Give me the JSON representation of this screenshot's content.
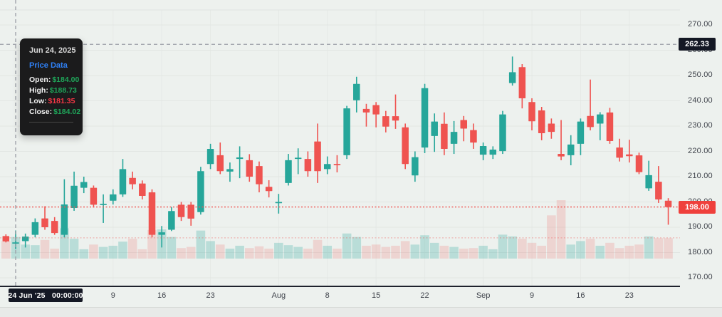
{
  "tooltip": {
    "date": "Jun 24, 2025",
    "series_label": "Price Data",
    "rows": [
      {
        "label": "Open:",
        "value": "$184.00",
        "trend": "up"
      },
      {
        "label": "High:",
        "value": "$188.73",
        "trend": "up"
      },
      {
        "label": "Low:",
        "value": "$181.35",
        "trend": "down"
      },
      {
        "label": "Close:",
        "value": "$184.02",
        "trend": "up"
      }
    ]
  },
  "axes": {
    "crosshair_price_label": "262.33",
    "last_price_label": "198.00",
    "crosshair_time_label": "24 Jun '25   00:00:00"
  },
  "colors": {
    "background": "#edf1ee",
    "up": "#26a69a",
    "down": "#ef5350",
    "volume_up": "rgba(38,166,154,0.26)",
    "volume_down": "rgba(239,83,80,0.18)",
    "grid": "#e2e6e3",
    "crosshair": "#9b9ea6",
    "last_price_line": "#ef5350",
    "axis_line": "#1e222d",
    "tooltip_blue": "#2f81f7",
    "value_green": "#1fa65a",
    "value_red": "#f23645"
  },
  "chart_data": {
    "type": "candlestick+volume",
    "y_ticks": [
      270,
      260,
      250,
      240,
      230,
      220,
      210,
      200,
      190,
      180,
      170
    ],
    "y_range": [
      166.5,
      276
    ],
    "x_ticks": [
      {
        "index": 11,
        "label": "9"
      },
      {
        "index": 16,
        "label": "16"
      },
      {
        "index": 21,
        "label": "23"
      },
      {
        "index": 28,
        "label": "Aug"
      },
      {
        "index": 33,
        "label": "8"
      },
      {
        "index": 38,
        "label": "15"
      },
      {
        "index": 43,
        "label": "22"
      },
      {
        "index": 49,
        "label": "Sep"
      },
      {
        "index": 54,
        "label": "9"
      },
      {
        "index": 59,
        "label": "16"
      },
      {
        "index": 64,
        "label": "23"
      }
    ],
    "crosshair": {
      "index": 1,
      "price": 262.33
    },
    "dotted_lines": [
      {
        "price": 198.0,
        "style": "strong"
      },
      {
        "price": 185.8,
        "style": "faint"
      }
    ],
    "last_price": 198.0,
    "columns": [
      "date",
      "open",
      "high",
      "low",
      "close",
      "volume_rel"
    ],
    "candles": [
      [
        "Jun 23",
        186.5,
        187.2,
        184.0,
        184.4,
        0.3
      ],
      [
        "Jun 24",
        184.0,
        188.73,
        181.35,
        184.02,
        0.37
      ],
      [
        "Jun 25",
        184.5,
        187.5,
        182.0,
        186.3,
        0.24
      ],
      [
        "Jun 26",
        187.0,
        193.5,
        186.0,
        192.0,
        0.23
      ],
      [
        "Jun 27",
        193.5,
        198.3,
        189.0,
        190.0,
        0.32
      ],
      [
        "Jun 30",
        192.5,
        194.0,
        187.0,
        187.7,
        0.17
      ],
      [
        "Jul 1",
        187.0,
        209.0,
        186.0,
        199.0,
        0.52
      ],
      [
        "Jul 2",
        197.6,
        212.0,
        196.5,
        206.4,
        0.34
      ],
      [
        "Jul 3",
        205.6,
        210.0,
        203.5,
        207.9,
        0.16
      ],
      [
        "Jul 7",
        205.6,
        206.5,
        197.8,
        198.9,
        0.24
      ],
      [
        "Jul 8",
        199.0,
        203.0,
        191.7,
        199.3,
        0.2
      ],
      [
        "Jul 9",
        200.5,
        205.0,
        199.0,
        203.0,
        0.22
      ],
      [
        "Jul 10",
        203.0,
        217.0,
        202.0,
        213.0,
        0.29
      ],
      [
        "Jul 11",
        209.5,
        212.0,
        205.0,
        207.0,
        0.34
      ],
      [
        "Jul 14",
        207.3,
        208.5,
        201.0,
        202.4,
        0.16
      ],
      [
        "Jul 15",
        203.8,
        205.0,
        186.0,
        187.0,
        0.49
      ],
      [
        "Jul 16",
        187.0,
        190.5,
        182.0,
        188.0,
        0.5
      ],
      [
        "Jul 17",
        189.0,
        198.0,
        188.5,
        196.4,
        0.37
      ],
      [
        "Jul 18",
        198.9,
        200.0,
        192.5,
        194.0,
        0.18
      ],
      [
        "Jul 21",
        198.9,
        200.0,
        190.6,
        193.4,
        0.2
      ],
      [
        "Jul 22",
        196.0,
        213.9,
        195.0,
        212.2,
        0.48
      ],
      [
        "Jul 23",
        215.0,
        223.0,
        213.0,
        221.0,
        0.3
      ],
      [
        "Jul 24",
        218.5,
        223.5,
        211.0,
        212.2,
        0.24
      ],
      [
        "Jul 25",
        212.0,
        215.6,
        208.0,
        213.0,
        0.17
      ],
      [
        "Jul 28",
        217.0,
        222.0,
        209.4,
        217.6,
        0.22
      ],
      [
        "Jul 29",
        216.5,
        218.9,
        208.0,
        210.0,
        0.18
      ],
      [
        "Jul 30",
        214.2,
        216.0,
        203.8,
        207.0,
        0.21
      ],
      [
        "Jul 31",
        206.0,
        208.6,
        201.8,
        204.3,
        0.17
      ],
      [
        "Aug 1",
        199.5,
        203.2,
        195.4,
        200.0,
        0.27
      ],
      [
        "Aug 4",
        207.5,
        219.0,
        206.5,
        216.5,
        0.23
      ],
      [
        "Aug 5",
        217.0,
        221.2,
        211.0,
        217.5,
        0.2
      ],
      [
        "Aug 6",
        217.0,
        220.0,
        210.0,
        212.2,
        0.17
      ],
      [
        "Aug 7",
        223.9,
        231.0,
        207.5,
        212.2,
        0.32
      ],
      [
        "Aug 8",
        213.0,
        218.0,
        211.0,
        215.0,
        0.22
      ],
      [
        "Aug 11",
        215.0,
        218.5,
        211.7,
        214.5,
        0.17
      ],
      [
        "Aug 12",
        218.5,
        238.0,
        217.0,
        237.0,
        0.43
      ],
      [
        "Aug 13",
        240.2,
        249.5,
        235.4,
        246.7,
        0.37
      ],
      [
        "Aug 14",
        236.8,
        238.8,
        229.8,
        235.4,
        0.22
      ],
      [
        "Aug 15",
        238.3,
        239.5,
        229.5,
        234.6,
        0.24
      ],
      [
        "Aug 18",
        233.9,
        236.0,
        227.5,
        229.8,
        0.2
      ],
      [
        "Aug 19",
        233.9,
        242.5,
        228.9,
        232.2,
        0.22
      ],
      [
        "Aug 20",
        229.5,
        231.0,
        213.0,
        215.0,
        0.3
      ],
      [
        "Aug 21",
        210.5,
        220.0,
        208.0,
        217.7,
        0.24
      ],
      [
        "Aug 22",
        221.5,
        246.7,
        219.3,
        245.0,
        0.4
      ],
      [
        "Aug 25",
        226.1,
        235.0,
        219.8,
        231.8,
        0.27
      ],
      [
        "Aug 26",
        230.9,
        235.4,
        218.5,
        221.0,
        0.22
      ],
      [
        "Aug 27",
        223.0,
        232.0,
        219.0,
        227.7,
        0.2
      ],
      [
        "Aug 28",
        232.4,
        234.0,
        224.0,
        229.0,
        0.17
      ],
      [
        "Aug 29",
        228.4,
        231.0,
        221.0,
        223.5,
        0.18
      ],
      [
        "Sep 2",
        218.7,
        223.5,
        216.5,
        222.1,
        0.22
      ],
      [
        "Sep 3",
        218.7,
        222.0,
        217.0,
        220.7,
        0.16
      ],
      [
        "Sep 4",
        220.1,
        236.0,
        219.0,
        234.6,
        0.41
      ],
      [
        "Sep 5",
        247.0,
        257.5,
        246.0,
        251.3,
        0.38
      ],
      [
        "Sep 8",
        253.3,
        254.5,
        237.0,
        241.0,
        0.34
      ],
      [
        "Sep 9",
        239.5,
        241.0,
        228.3,
        231.9,
        0.27
      ],
      [
        "Sep 10",
        236.2,
        237.6,
        224.4,
        227.2,
        0.22
      ],
      [
        "Sep 11",
        231.0,
        233.0,
        225.0,
        227.7,
        0.74
      ],
      [
        "Sep 12",
        219.0,
        232.4,
        216.5,
        218.0,
        1.0
      ],
      [
        "Sep 15",
        218.5,
        226.4,
        214.5,
        222.7,
        0.24
      ],
      [
        "Sep 16",
        223.0,
        233.0,
        218.5,
        231.8,
        0.3
      ],
      [
        "Sep 17",
        234.0,
        248.4,
        228.3,
        229.6,
        0.34
      ],
      [
        "Sep 18",
        231.0,
        235.5,
        224.4,
        234.6,
        0.22
      ],
      [
        "Sep 19",
        235.4,
        237.2,
        223.0,
        224.1,
        0.27
      ],
      [
        "Sep 22",
        221.5,
        225.0,
        216.0,
        217.5,
        0.18
      ],
      [
        "Sep 23",
        218.8,
        224.6,
        215.6,
        218.1,
        0.22
      ],
      [
        "Sep 24",
        218.4,
        219.5,
        211.0,
        211.8,
        0.24
      ],
      [
        "Sep 25",
        205.4,
        216.3,
        204.4,
        210.6,
        0.38
      ],
      [
        "Sep 26",
        208.0,
        214.2,
        199.6,
        201.0,
        0.35
      ],
      [
        "Sep 29",
        200.5,
        201.5,
        191.0,
        198.0,
        0.35
      ]
    ]
  }
}
